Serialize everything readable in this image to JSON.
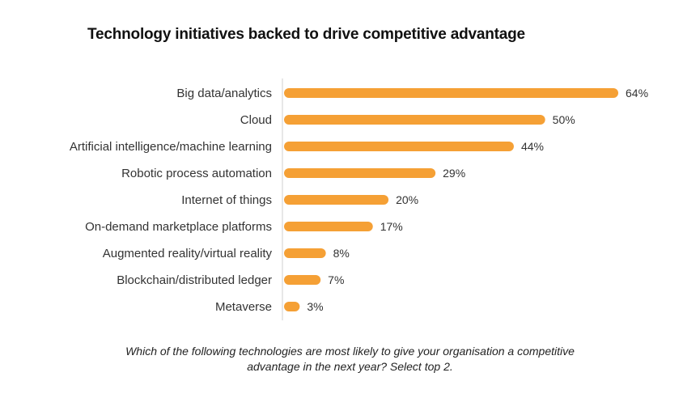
{
  "chart_data": {
    "type": "bar",
    "orientation": "horizontal",
    "title": "Technology initiatives backed to drive competitive advantage",
    "categories": [
      "Big data/analytics",
      "Cloud",
      "Artificial intelligence/machine learning",
      "Robotic process automation",
      "Internet of things",
      "On-demand marketplace platforms",
      "Augmented reality/virtual reality",
      "Blockchain/distributed ledger",
      "Metaverse"
    ],
    "values": [
      64,
      50,
      44,
      29,
      20,
      17,
      8,
      7,
      3
    ],
    "value_labels": [
      "64%",
      "50%",
      "44%",
      "29%",
      "20%",
      "17%",
      "8%",
      "7%",
      "3%"
    ],
    "unit": "%",
    "xlim": [
      0,
      64
    ],
    "bar_color": "#f5a035",
    "axis_color": "#cfcfcf",
    "xlabel": "",
    "ylabel": ""
  },
  "caption": {
    "line1": "Which of the following technologies are most likely to give your organisation a competitive",
    "line2": "advantage in the next year? Select top 2."
  }
}
